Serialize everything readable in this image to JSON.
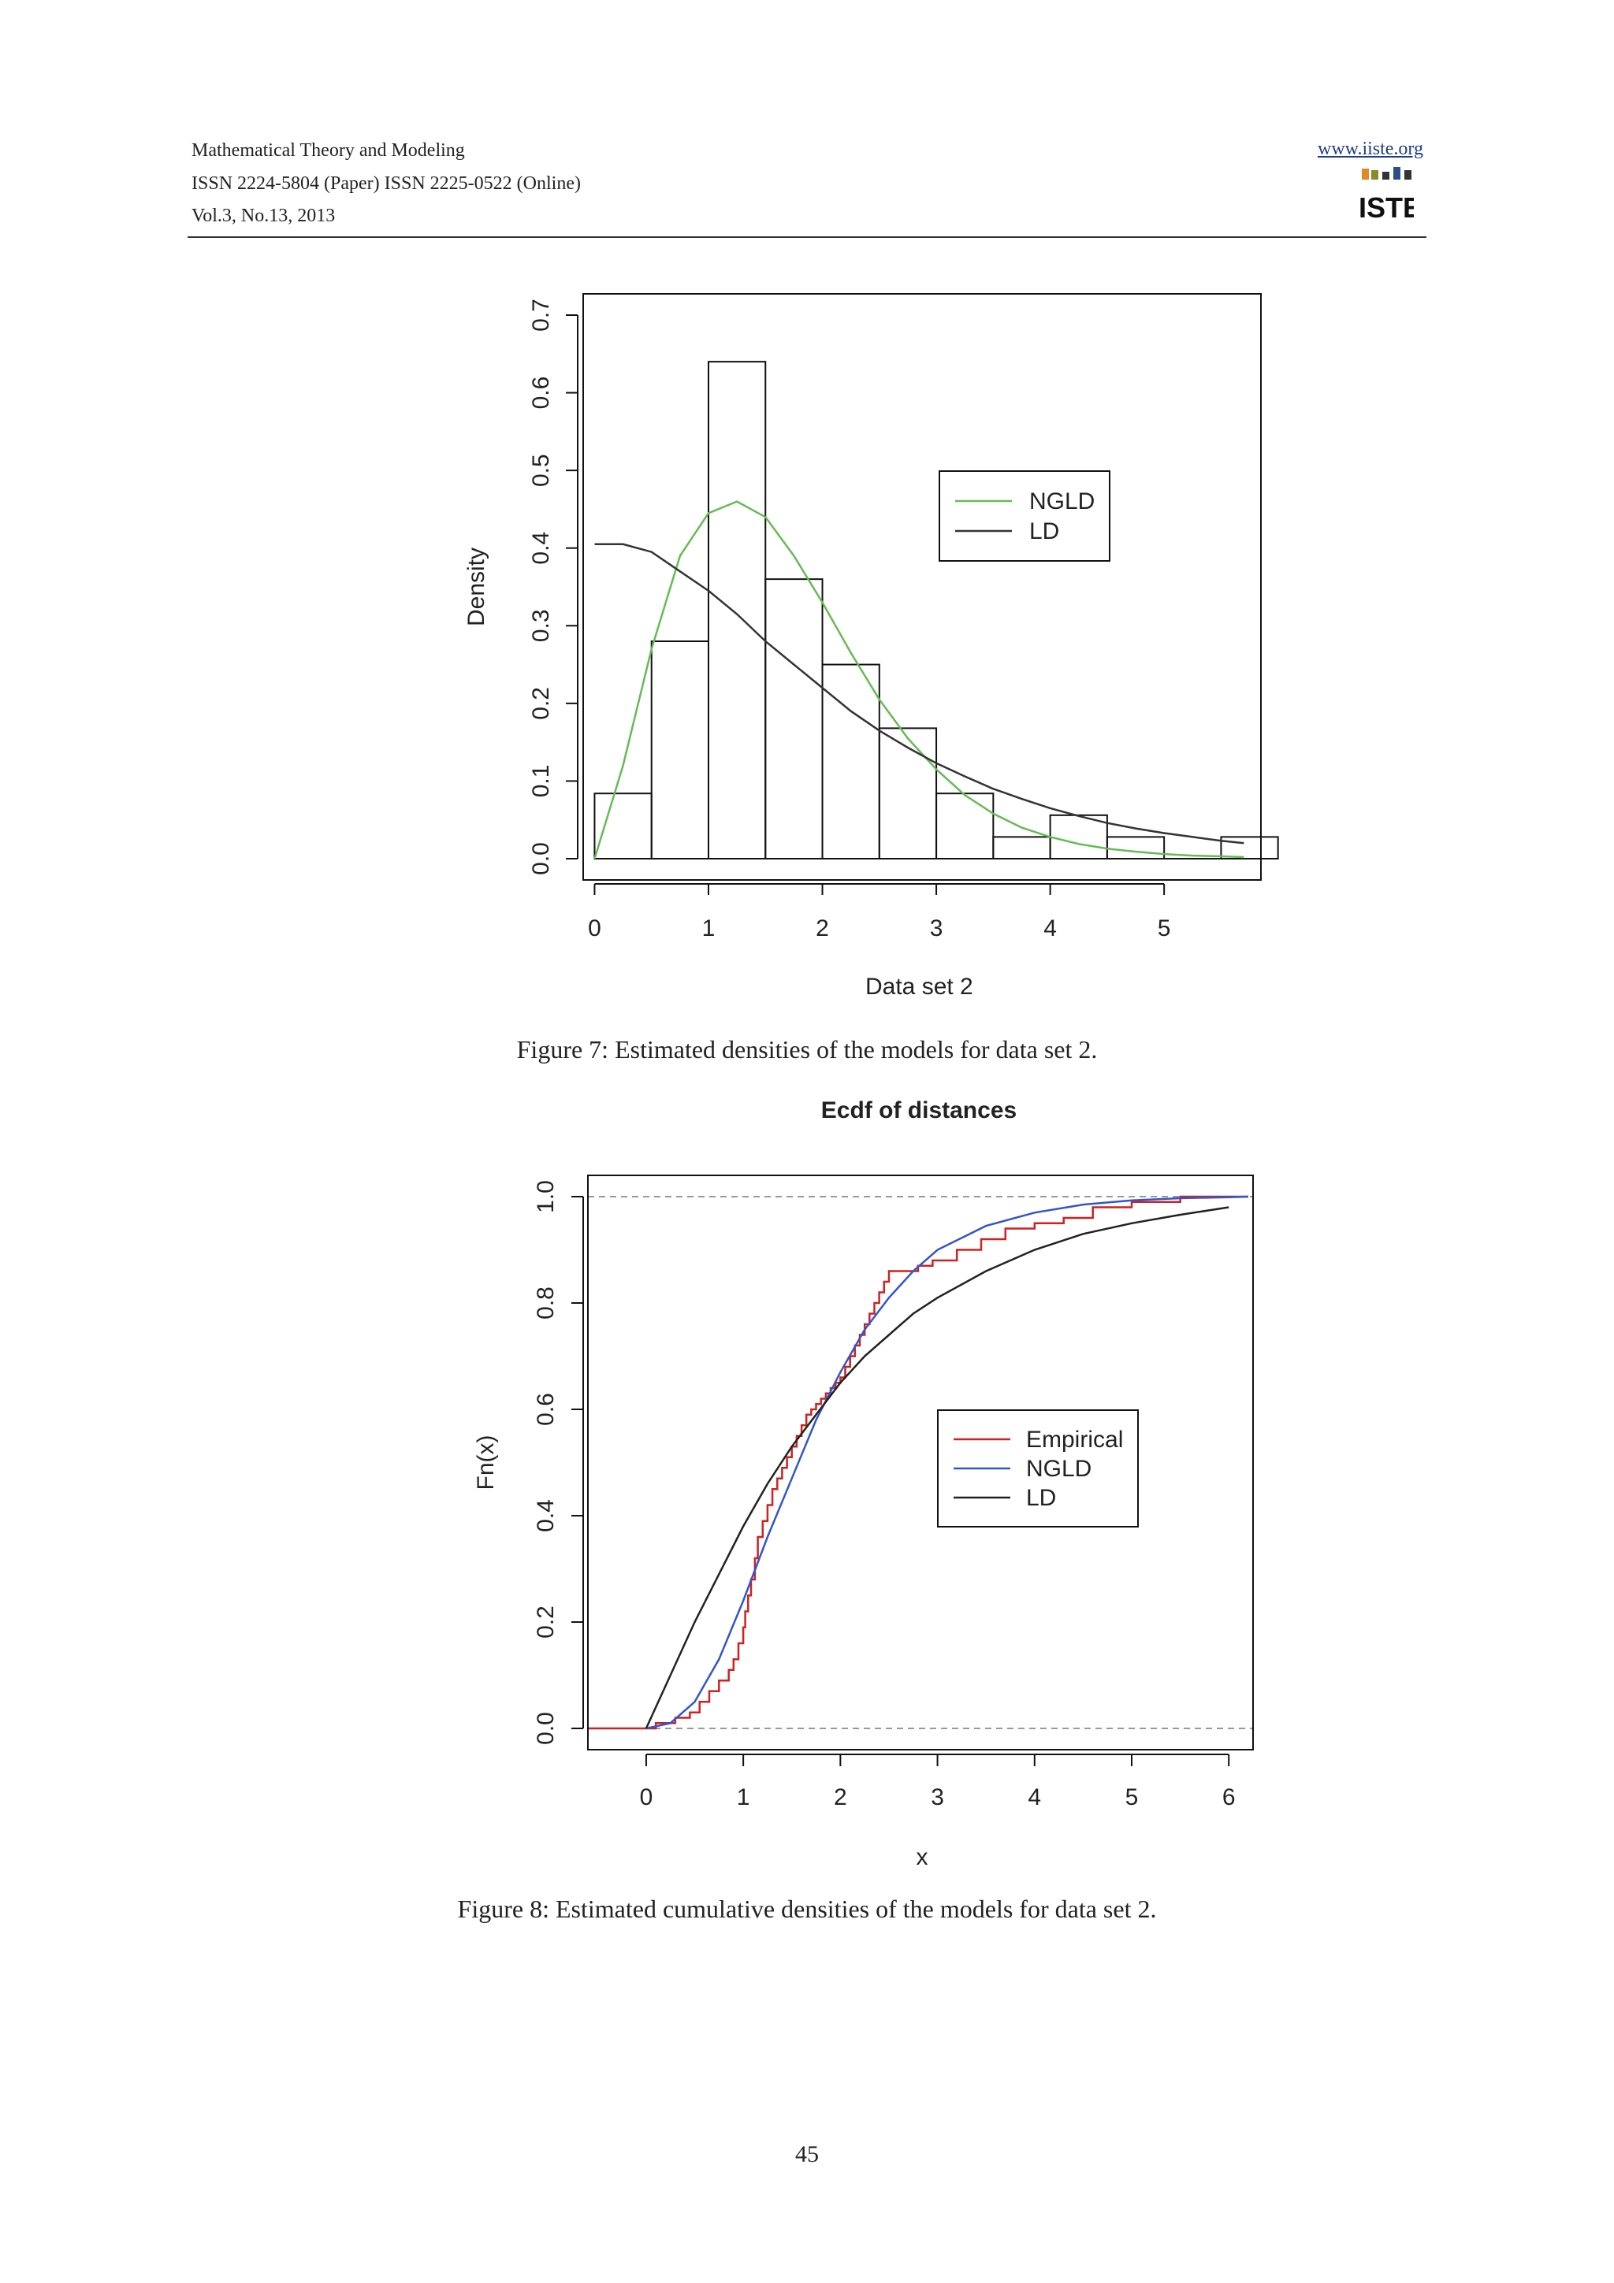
{
  "header": {
    "journal": "Mathematical Theory and Modeling",
    "issn": "ISSN 2224-5804 (Paper)    ISSN 2225-0522 (Online)",
    "volume": "Vol.3, No.13, 2013",
    "website": "www.iiste.org",
    "logo_text": "IISTE"
  },
  "figures": [
    {
      "caption": "Figure  7: Estimated densities of the models for data set 2.",
      "chart_data": {
        "type": "histogram",
        "title": "",
        "xlabel": "Data set 2",
        "ylabel": "Density",
        "xlim": [
          -0.1,
          5.85
        ],
        "ylim": [
          0,
          0.72
        ],
        "xticks": [
          "0",
          "1",
          "2",
          "3",
          "4",
          "5"
        ],
        "yticks": [
          "0.0",
          "0.1",
          "0.2",
          "0.3",
          "0.4",
          "0.5",
          "0.6",
          "0.7"
        ],
        "bins": [
          {
            "x0": 0.0,
            "x1": 0.5,
            "density": 0.084
          },
          {
            "x0": 0.5,
            "x1": 1.0,
            "density": 0.28
          },
          {
            "x0": 1.0,
            "x1": 1.5,
            "density": 0.64
          },
          {
            "x0": 1.5,
            "x1": 2.0,
            "density": 0.36
          },
          {
            "x0": 2.0,
            "x1": 2.5,
            "density": 0.25
          },
          {
            "x0": 2.5,
            "x1": 3.0,
            "density": 0.168
          },
          {
            "x0": 3.0,
            "x1": 3.5,
            "density": 0.084
          },
          {
            "x0": 3.5,
            "x1": 4.0,
            "density": 0.028
          },
          {
            "x0": 4.0,
            "x1": 4.5,
            "density": 0.056
          },
          {
            "x0": 4.5,
            "x1": 5.0,
            "density": 0.028
          },
          {
            "x0": 5.0,
            "x1": 5.5,
            "density": 0.0
          },
          {
            "x0": 5.5,
            "x1": 6.0,
            "density": 0.028
          }
        ],
        "series": [
          {
            "name": "NGLD",
            "color": "#66bb55",
            "x": [
              0,
              0.25,
              0.5,
              0.75,
              1.0,
              1.25,
              1.5,
              1.75,
              2.0,
              2.25,
              2.5,
              2.75,
              3.0,
              3.25,
              3.5,
              3.75,
              4.0,
              4.25,
              4.5,
              4.75,
              5.0,
              5.25,
              5.5,
              5.7
            ],
            "y": [
              0.0,
              0.12,
              0.27,
              0.39,
              0.445,
              0.46,
              0.44,
              0.39,
              0.33,
              0.265,
              0.205,
              0.155,
              0.115,
              0.082,
              0.058,
              0.04,
              0.028,
              0.019,
              0.013,
              0.009,
              0.006,
              0.004,
              0.003,
              0.002
            ]
          },
          {
            "name": "LD",
            "color": "#333333",
            "x": [
              0,
              0.25,
              0.5,
              0.75,
              1.0,
              1.25,
              1.5,
              1.75,
              2.0,
              2.25,
              2.5,
              2.75,
              3.0,
              3.25,
              3.5,
              3.75,
              4.0,
              4.25,
              4.5,
              4.75,
              5.0,
              5.25,
              5.5,
              5.7
            ],
            "y": [
              0.405,
              0.405,
              0.395,
              0.37,
              0.345,
              0.315,
              0.28,
              0.25,
              0.22,
              0.19,
              0.165,
              0.143,
              0.123,
              0.106,
              0.09,
              0.077,
              0.065,
              0.055,
              0.046,
              0.039,
              0.033,
              0.028,
              0.023,
              0.02
            ]
          }
        ],
        "legend": {
          "position": "top-right",
          "entries": [
            "NGLD",
            "LD"
          ]
        }
      }
    },
    {
      "caption": "Figure  8: Estimated cumulative densities of the models for data set 2.",
      "chart_data": {
        "type": "line",
        "title": "Ecdf of distances",
        "xlabel": "x",
        "ylabel": "Fn(x)",
        "xlim": [
          -0.6,
          6.25
        ],
        "ylim": [
          -0.04,
          1.04
        ],
        "xticks": [
          "0",
          "1",
          "2",
          "3",
          "4",
          "5",
          "6"
        ],
        "yticks": [
          "0.0",
          "0.2",
          "0.4",
          "0.6",
          "0.8",
          "1.0"
        ],
        "reference_lines": [
          0,
          1
        ],
        "series": [
          {
            "name": "Empirical",
            "color": "#cc2222",
            "step": true,
            "x": [
              -0.6,
              0.1,
              0.3,
              0.45,
              0.55,
              0.65,
              0.75,
              0.85,
              0.9,
              0.95,
              1.0,
              1.02,
              1.05,
              1.08,
              1.12,
              1.15,
              1.2,
              1.25,
              1.3,
              1.35,
              1.4,
              1.45,
              1.5,
              1.55,
              1.6,
              1.65,
              1.7,
              1.75,
              1.8,
              1.85,
              1.9,
              1.95,
              2.0,
              2.05,
              2.1,
              2.15,
              2.2,
              2.25,
              2.3,
              2.35,
              2.4,
              2.45,
              2.5,
              2.55,
              2.6,
              2.8,
              2.95,
              3.2,
              3.45,
              3.7,
              4.0,
              4.3,
              4.6,
              5.0,
              5.5,
              6.2
            ],
            "y": [
              0.0,
              0.01,
              0.02,
              0.03,
              0.05,
              0.07,
              0.09,
              0.11,
              0.13,
              0.16,
              0.19,
              0.22,
              0.25,
              0.28,
              0.32,
              0.36,
              0.39,
              0.42,
              0.45,
              0.47,
              0.49,
              0.51,
              0.53,
              0.55,
              0.57,
              0.59,
              0.6,
              0.61,
              0.62,
              0.63,
              0.64,
              0.65,
              0.66,
              0.68,
              0.7,
              0.72,
              0.74,
              0.76,
              0.78,
              0.8,
              0.82,
              0.84,
              0.86,
              0.86,
              0.86,
              0.87,
              0.88,
              0.9,
              0.92,
              0.94,
              0.95,
              0.96,
              0.98,
              0.99,
              1.0,
              1.0
            ]
          },
          {
            "name": "NGLD",
            "color": "#3355cc",
            "x": [
              0,
              0.25,
              0.5,
              0.75,
              1.0,
              1.25,
              1.5,
              1.75,
              2.0,
              2.25,
              2.5,
              2.75,
              3.0,
              3.5,
              4.0,
              4.5,
              5.0,
              5.5,
              6.0,
              6.2
            ],
            "y": [
              0.0,
              0.01,
              0.05,
              0.13,
              0.24,
              0.36,
              0.47,
              0.58,
              0.67,
              0.75,
              0.81,
              0.86,
              0.9,
              0.945,
              0.97,
              0.985,
              0.993,
              0.997,
              0.999,
              1.0
            ]
          },
          {
            "name": "LD",
            "color": "#222222",
            "x": [
              0,
              0.25,
              0.5,
              0.75,
              1.0,
              1.25,
              1.5,
              1.75,
              2.0,
              2.25,
              2.5,
              2.75,
              3.0,
              3.5,
              4.0,
              4.5,
              5.0,
              5.5,
              6.0
            ],
            "y": [
              0.0,
              0.1,
              0.2,
              0.29,
              0.38,
              0.46,
              0.53,
              0.59,
              0.65,
              0.7,
              0.74,
              0.78,
              0.81,
              0.86,
              0.9,
              0.93,
              0.95,
              0.966,
              0.98
            ]
          }
        ],
        "legend": {
          "position": "center-right",
          "entries": [
            "Empirical",
            "NGLD",
            "LD"
          ]
        }
      }
    }
  ],
  "page_number": "45"
}
